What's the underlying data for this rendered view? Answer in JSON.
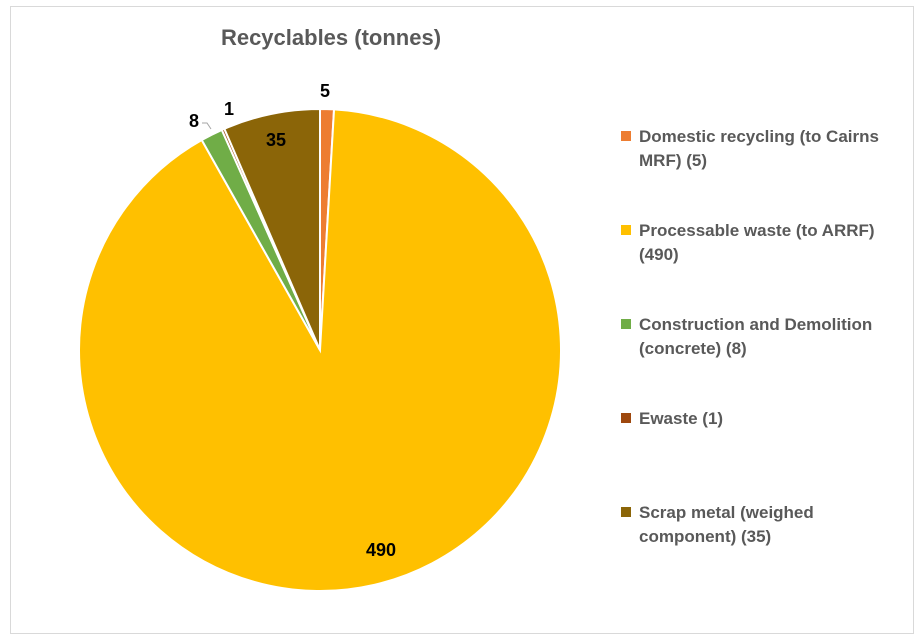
{
  "chart_data": {
    "type": "pie",
    "title": "Recyclables (tonnes)",
    "slices": [
      {
        "label": "Domestic recycling (to Cairns MRF) (5)",
        "value": 5,
        "color": "#ED7D31",
        "data_label": "5"
      },
      {
        "label": "Processable waste (to ARRF) (490)",
        "value": 490,
        "color": "#FFC000",
        "data_label": "490"
      },
      {
        "label": "Construction and Demolition (concrete) (8)",
        "value": 8,
        "color": "#70AD47",
        "data_label": "8"
      },
      {
        "label": "Ewaste (1)",
        "value": 1,
        "color": "#9E480E",
        "data_label": "1"
      },
      {
        "label": "Scrap metal (weighed component) (35)",
        "value": 35,
        "color": "#8B6508",
        "data_label": "35"
      }
    ],
    "legend_position": "right"
  }
}
